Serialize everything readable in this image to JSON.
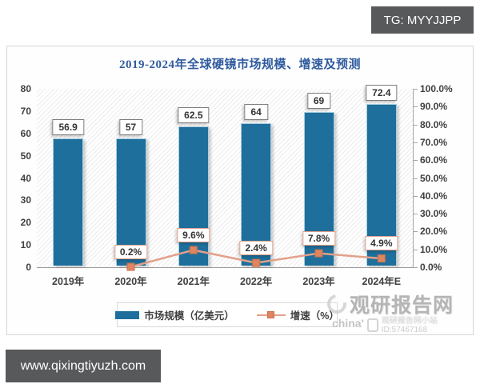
{
  "top_banner": {
    "text": "TG: MYYJJPP"
  },
  "bottom_banner": {
    "text": "www.qixingtiyuzh.com"
  },
  "watermark": {
    "brand": "观研报告网",
    "prefix": "china'",
    "blur_text": "观研报告网小站",
    "id_line": "ID:57467168"
  },
  "chart_data": {
    "type": "bar",
    "combo": "bar+line dual axis",
    "title": "2019-2024年全球硬镜市场规模、增速及预测",
    "categories": [
      "2019年",
      "2020年",
      "2021年",
      "2022年",
      "2023年",
      "2024年E"
    ],
    "series": [
      {
        "name": "市场规模（亿美元）",
        "type": "bar",
        "axis": "left",
        "color": "#1e6f9c",
        "values": [
          56.9,
          57,
          62.5,
          64,
          69,
          72.4
        ],
        "data_labels": [
          "56.9",
          "57",
          "62.5",
          "64",
          "69",
          "72.4"
        ]
      },
      {
        "name": "增速（%）",
        "type": "line",
        "axis": "right",
        "color": "#e2a089",
        "marker_color": "#df855f",
        "values": [
          null,
          0.2,
          9.6,
          2.4,
          7.8,
          4.9
        ],
        "data_labels": [
          "",
          "0.2%",
          "9.6%",
          "2.4%",
          "7.8%",
          "4.9%"
        ]
      }
    ],
    "left_axis": {
      "min": 0,
      "max": 80,
      "step": 10,
      "ticks": [
        "0",
        "10",
        "20",
        "30",
        "40",
        "50",
        "60",
        "70",
        "80"
      ]
    },
    "right_axis": {
      "min": 0,
      "max": 100,
      "step": 10,
      "ticks": [
        "0.0%",
        "10.0%",
        "20.0%",
        "30.0%",
        "40.0%",
        "50.0%",
        "60.0%",
        "70.0%",
        "80.0%",
        "90.0%",
        "100.0%"
      ]
    },
    "legend": {
      "position": "bottom",
      "items": [
        {
          "label": "市场规模（亿美元）",
          "swatch": "bar"
        },
        {
          "label": "增速（%）",
          "swatch": "line"
        }
      ]
    },
    "grid": false,
    "plot_background": "diagonal-hatch"
  }
}
